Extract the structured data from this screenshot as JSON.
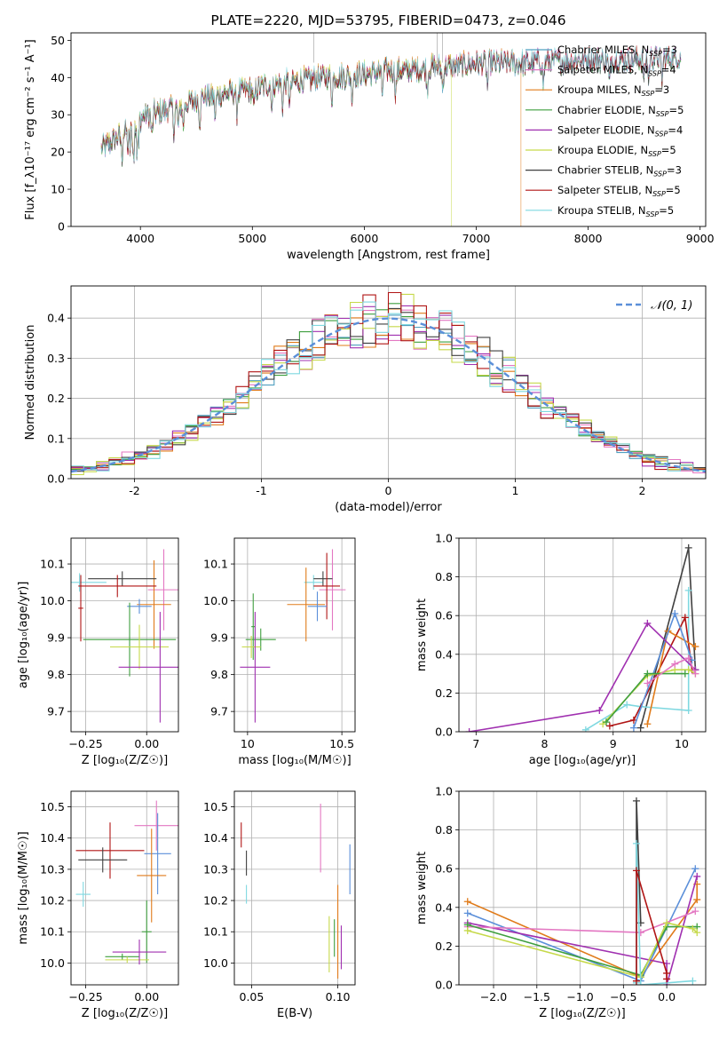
{
  "chart_data": [
    {
      "type": "line",
      "title": "PLATE=2220, MJD=53795, FIBERID=0473, z=0.046",
      "xlabel": "wavelength [Angstrom, rest frame]",
      "ylabel": "Flux [f_λ10⁻¹⁷ erg cm⁻² s⁻¹ A⁻¹]",
      "xlim": [
        3380,
        9050
      ],
      "ylim": [
        0,
        52
      ],
      "xticks": [
        4000,
        5000,
        6000,
        7000,
        8000,
        9000
      ],
      "yticks": [
        0,
        10,
        20,
        30,
        40,
        50
      ],
      "legend": "upper-right",
      "series": [
        {
          "name": "Chabrier MILES, N_SSP=3",
          "color": "#4f9fbf"
        },
        {
          "name": "Salpeter MILES, N_SSP=4",
          "color": "#e377c2"
        },
        {
          "name": "Kroupa MILES, N_SSP=3",
          "color": "#e07b1a"
        },
        {
          "name": "Chabrier ELODIE, N_SSP=5",
          "color": "#3f9f3f"
        },
        {
          "name": "Salpeter ELODIE, N_SSP=4",
          "color": "#a030b0"
        },
        {
          "name": "Kroupa ELODIE, N_SSP=5",
          "color": "#c6d94a"
        },
        {
          "name": "Chabrier STELIB, N_SSP=3",
          "color": "#404040"
        },
        {
          "name": "Salpeter STELIB, N_SSP=5",
          "color": "#b01515"
        },
        {
          "name": "Kroupa STELIB, N_SSP=5",
          "color": "#7fd8e0"
        }
      ],
      "continuum": {
        "x": [
          3650,
          3800,
          3950,
          4050,
          4200,
          4400,
          4600,
          4800,
          5000,
          5200,
          5400,
          5600,
          5800,
          6000,
          6200,
          6400,
          6600,
          6800,
          7000,
          7200,
          7400,
          7600,
          7800,
          8000,
          8200,
          8400,
          8600,
          8800
        ],
        "y": [
          21,
          24,
          28,
          30,
          31,
          33,
          35,
          36,
          37,
          38.5,
          39,
          40,
          40.5,
          41,
          42,
          42,
          43,
          43,
          44,
          44,
          44,
          44.5,
          44.5,
          45,
          45,
          45,
          45.5,
          45.5
        ]
      },
      "cutoffs": {
        "Kroupa ELODIE, N_SSP=5": 6780,
        "Kroupa MILES, N_SSP=3": 7400
      }
    },
    {
      "type": "histogram",
      "xlabel": "(data-model)/error",
      "ylabel": "Normed distribution",
      "xlim": [
        -2.5,
        2.5
      ],
      "ylim": [
        0,
        0.48
      ],
      "xticks": [
        -2,
        -1,
        0,
        1,
        2
      ],
      "yticks": [
        0.0,
        0.1,
        0.2,
        0.3,
        0.4
      ],
      "legend": "upper-right",
      "reference_curve": {
        "name": "𝒩(0, 1)",
        "color": "#5b8fd9"
      },
      "bins": {
        "start": -2.5,
        "width": 0.1,
        "count": 50
      }
    },
    {
      "type": "scatter",
      "xlabel": "Z [log₁₀(Z/Z☉)]",
      "ylabel": "age  [log₁₀(age/yr)]",
      "xlim": [
        -0.31,
        0.13
      ],
      "ylim": [
        9.645,
        10.17
      ],
      "xticks": [
        -0.25,
        0.0
      ],
      "xtick_labels": [
        "−0.25",
        "0.00"
      ],
      "yticks": [
        9.7,
        9.8,
        9.9,
        10.0,
        10.1
      ],
      "points": [
        {
          "x": -0.275,
          "y": 10.05,
          "xerr": 0.11,
          "yerr": 0.025,
          "color": "#7fd8e0"
        },
        {
          "x": 0.07,
          "y": 10.03,
          "xerr": 0.065,
          "yerr": 0.11,
          "color": "#e377c2"
        },
        {
          "x": 0.03,
          "y": 9.99,
          "xerr": 0.07,
          "yerr": 0.12,
          "color": "#e07b1a"
        },
        {
          "x": -0.1,
          "y": 10.06,
          "xerr": 0.14,
          "yerr": 0.02,
          "color": "#404040"
        },
        {
          "x": -0.12,
          "y": 10.04,
          "xerr": 0.16,
          "yerr": 0.03,
          "color": "#b01515"
        },
        {
          "x": -0.03,
          "y": 9.985,
          "xerr": 0.05,
          "yerr": 0.02,
          "color": "#5b8fd9"
        },
        {
          "x": -0.27,
          "y": 9.98,
          "xerr": 0.01,
          "yerr": 0.09,
          "color": "#b01515"
        },
        {
          "x": -0.07,
          "y": 9.895,
          "xerr": 0.19,
          "yerr": 0.1,
          "color": "#3f9f3f"
        },
        {
          "x": -0.03,
          "y": 9.875,
          "xerr": 0.12,
          "yerr": 0.06,
          "color": "#c6d94a"
        },
        {
          "x": 0.055,
          "y": 9.82,
          "xerr": 0.17,
          "yerr": 0.15,
          "color": "#a030b0"
        }
      ]
    },
    {
      "type": "scatter",
      "xlabel": "mass [log₁₀(M/M☉)]",
      "ylabel": "",
      "xlim": [
        9.93,
        10.57
      ],
      "ylim": [
        9.645,
        10.17
      ],
      "xticks": [
        10.0,
        10.5
      ],
      "yticks": [
        9.7,
        9.8,
        9.9,
        10.0,
        10.1
      ],
      "points": [
        {
          "x": 10.35,
          "y": 10.05,
          "xerr": 0.05,
          "yerr": 0.02,
          "color": "#7fd8e0"
        },
        {
          "x": 10.45,
          "y": 10.03,
          "xerr": 0.07,
          "yerr": 0.11,
          "color": "#e377c2"
        },
        {
          "x": 10.4,
          "y": 10.06,
          "xerr": 0.05,
          "yerr": 0.02,
          "color": "#404040"
        },
        {
          "x": 10.42,
          "y": 10.04,
          "xerr": 0.07,
          "yerr": 0.09,
          "color": "#b01515"
        },
        {
          "x": 10.31,
          "y": 9.99,
          "xerr": 0.1,
          "yerr": 0.1,
          "color": "#e07b1a"
        },
        {
          "x": 10.37,
          "y": 9.985,
          "xerr": 0.05,
          "yerr": 0.04,
          "color": "#5b8fd9"
        },
        {
          "x": 10.03,
          "y": 9.93,
          "xerr": 0.01,
          "yerr": 0.09,
          "color": "#3f9f3f"
        },
        {
          "x": 10.07,
          "y": 9.895,
          "xerr": 0.08,
          "yerr": 0.03,
          "color": "#3f9f3f"
        },
        {
          "x": 10.02,
          "y": 9.875,
          "xerr": 0.05,
          "yerr": 0.03,
          "color": "#c6d94a"
        },
        {
          "x": 10.04,
          "y": 9.82,
          "xerr": 0.08,
          "yerr": 0.15,
          "color": "#a030b0"
        }
      ]
    },
    {
      "type": "line",
      "xlabel": "age  [log₁₀(age/yr)]",
      "ylabel": "mass weight",
      "xlim": [
        6.75,
        10.35
      ],
      "ylim": [
        0,
        1.0
      ],
      "xticks": [
        7,
        8,
        9,
        10
      ],
      "yticks": [
        0.0,
        0.2,
        0.4,
        0.6,
        0.8,
        1.0
      ],
      "series": [
        {
          "color": "#404040",
          "x": [
            9.4,
            10.1,
            10.2
          ],
          "y": [
            0.02,
            0.95,
            0.32
          ]
        },
        {
          "color": "#7fd8e0",
          "x": [
            8.6,
            9.2,
            9.4,
            10.1,
            10.1
          ],
          "y": [
            0.01,
            0.14,
            0.13,
            0.11,
            0.73
          ]
        },
        {
          "color": "#b01515",
          "x": [
            8.95,
            9.3,
            10.05,
            10.15
          ],
          "y": [
            0.03,
            0.06,
            0.59,
            0.32
          ]
        },
        {
          "color": "#e07b1a",
          "x": [
            9.5,
            9.8,
            10.2
          ],
          "y": [
            0.04,
            0.52,
            0.44
          ]
        },
        {
          "color": "#5b8fd9",
          "x": [
            9.3,
            9.9,
            10.15
          ],
          "y": [
            0.02,
            0.61,
            0.37
          ]
        },
        {
          "color": "#a030b0",
          "x": [
            6.9,
            8.8,
            9.5,
            10.2
          ],
          "y": [
            0.0,
            0.11,
            0.56,
            0.32
          ]
        },
        {
          "color": "#c6d94a",
          "x": [
            8.85,
            9.5,
            9.9,
            10.1,
            10.2
          ],
          "y": [
            0.04,
            0.29,
            0.32,
            0.32,
            0.3
          ]
        },
        {
          "color": "#3f9f3f",
          "x": [
            8.9,
            9.5,
            10.05
          ],
          "y": [
            0.05,
            0.3,
            0.3
          ]
        },
        {
          "color": "#e377c2",
          "x": [
            9.5,
            9.9,
            10.1,
            10.2
          ],
          "y": [
            0.25,
            0.35,
            0.38,
            0.3
          ]
        }
      ]
    },
    {
      "type": "scatter",
      "xlabel": "Z [log₁₀(Z/Z☉)]",
      "ylabel": "mass [log₁₀(M/M☉)]",
      "xlim": [
        -0.31,
        0.13
      ],
      "ylim": [
        9.93,
        10.55
      ],
      "xticks": [
        -0.25,
        0.0
      ],
      "xtick_labels": [
        "−0.25",
        "0.00"
      ],
      "yticks": [
        10.0,
        10.1,
        10.2,
        10.3,
        10.4,
        10.5
      ],
      "points": [
        {
          "x": 0.04,
          "y": 10.44,
          "xerr": 0.09,
          "yerr": 0.08,
          "color": "#e377c2"
        },
        {
          "x": -0.15,
          "y": 10.36,
          "xerr": 0.14,
          "yerr": 0.09,
          "color": "#b01515"
        },
        {
          "x": 0.045,
          "y": 10.35,
          "xerr": 0.055,
          "yerr": 0.13,
          "color": "#5b8fd9"
        },
        {
          "x": -0.18,
          "y": 10.33,
          "xerr": 0.1,
          "yerr": 0.04,
          "color": "#404040"
        },
        {
          "x": 0.02,
          "y": 10.28,
          "xerr": 0.06,
          "yerr": 0.15,
          "color": "#e07b1a"
        },
        {
          "x": -0.26,
          "y": 10.22,
          "xerr": 0.03,
          "yerr": 0.04,
          "color": "#7fd8e0"
        },
        {
          "x": -0.1,
          "y": 10.02,
          "xerr": 0.07,
          "yerr": 0.01,
          "color": "#3f9f3f"
        },
        {
          "x": 0.0,
          "y": 10.1,
          "xerr": 0.02,
          "yerr": 0.1,
          "color": "#3f9f3f"
        },
        {
          "x": -0.08,
          "y": 10.01,
          "xerr": 0.09,
          "yerr": 0.01,
          "color": "#c6d94a"
        },
        {
          "x": -0.03,
          "y": 10.035,
          "xerr": 0.11,
          "yerr": 0.04,
          "color": "#a030b0"
        }
      ]
    },
    {
      "type": "scatter",
      "xlabel": "E(B-V)",
      "ylabel": "",
      "xlim": [
        0.04,
        0.11
      ],
      "ylim": [
        9.93,
        10.55
      ],
      "xticks": [
        0.05,
        0.1
      ],
      "xtick_labels": [
        "0.05",
        "0.10"
      ],
      "yticks": [
        10.0,
        10.1,
        10.2,
        10.3,
        10.4,
        10.5
      ],
      "points": [
        {
          "x": 0.044,
          "y": 10.41,
          "yerr": 0.04,
          "color": "#b01515"
        },
        {
          "x": 0.047,
          "y": 10.32,
          "yerr": 0.04,
          "color": "#404040"
        },
        {
          "x": 0.047,
          "y": 10.22,
          "yerr": 0.03,
          "color": "#7fd8e0"
        },
        {
          "x": 0.09,
          "y": 10.4,
          "yerr": 0.11,
          "color": "#e377c2"
        },
        {
          "x": 0.095,
          "y": 10.06,
          "yerr": 0.09,
          "color": "#c6d94a"
        },
        {
          "x": 0.1,
          "y": 10.1,
          "yerr": 0.15,
          "color": "#e07b1a"
        },
        {
          "x": 0.098,
          "y": 10.08,
          "yerr": 0.06,
          "color": "#3f9f3f"
        },
        {
          "x": 0.102,
          "y": 10.05,
          "yerr": 0.07,
          "color": "#a030b0"
        },
        {
          "x": 0.107,
          "y": 10.3,
          "yerr": 0.08,
          "color": "#5b8fd9"
        }
      ]
    },
    {
      "type": "line",
      "xlabel": "Z [log₁₀(Z/Z☉)]",
      "ylabel": "mass weight",
      "xlim": [
        -2.4,
        0.45
      ],
      "ylim": [
        0,
        1.0
      ],
      "xticks": [
        -2.0,
        -1.5,
        -1.0,
        -0.5,
        0.0
      ],
      "xtick_labels": [
        "−2.0",
        "−1.5",
        "−1.0",
        "−0.5",
        "0.0"
      ],
      "yticks": [
        0.0,
        0.2,
        0.4,
        0.6,
        0.8,
        1.0
      ],
      "series": [
        {
          "color": "#e07b1a",
          "x": [
            -2.3,
            -0.3,
            0.35,
            0.35
          ],
          "y": [
            0.43,
            0.04,
            0.44,
            0.52
          ]
        },
        {
          "color": "#5b8fd9",
          "x": [
            -2.3,
            -0.3,
            0.33
          ],
          "y": [
            0.37,
            0.02,
            0.6
          ]
        },
        {
          "color": "#a030b0",
          "x": [
            -2.3,
            0.0,
            0.0,
            0.35
          ],
          "y": [
            0.32,
            0.11,
            0.0,
            0.56
          ]
        },
        {
          "color": "#e377c2",
          "x": [
            -2.3,
            -0.3,
            0.33
          ],
          "y": [
            0.3,
            0.27,
            0.38
          ]
        },
        {
          "color": "#3f9f3f",
          "x": [
            -2.3,
            -0.3,
            0.0,
            0.35
          ],
          "y": [
            0.31,
            0.05,
            0.3,
            0.3
          ]
        },
        {
          "color": "#c6d94a",
          "x": [
            -2.3,
            -0.3,
            0.0,
            0.3,
            0.35
          ],
          "y": [
            0.28,
            0.04,
            0.32,
            0.29,
            0.27
          ]
        },
        {
          "color": "#404040",
          "x": [
            -0.35,
            -0.35,
            -0.3
          ],
          "y": [
            0.02,
            0.95,
            0.32
          ]
        },
        {
          "color": "#7fd8e0",
          "x": [
            -0.35,
            -0.35,
            -0.3,
            0.3
          ],
          "y": [
            0.01,
            0.73,
            0.0,
            0.02
          ]
        },
        {
          "color": "#b01515",
          "x": [
            -0.35,
            -0.35,
            0.0,
            0.0
          ],
          "y": [
            0.02,
            0.59,
            0.06,
            0.03
          ]
        }
      ]
    }
  ]
}
